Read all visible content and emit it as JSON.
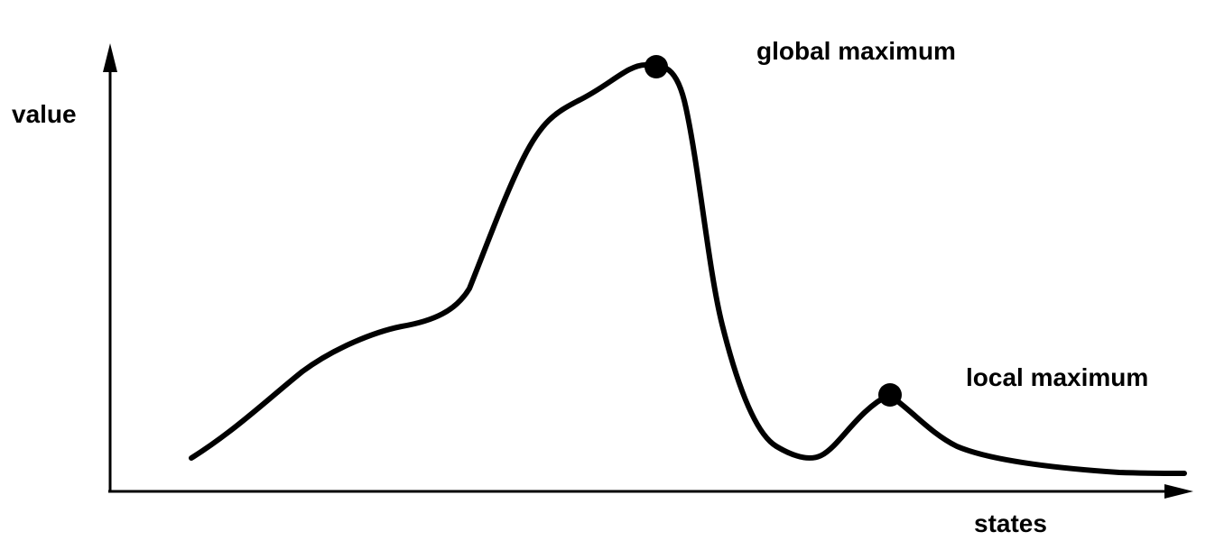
{
  "axes": {
    "y_label": "value",
    "x_label": "states"
  },
  "annotations": {
    "global_max": "global maximum",
    "local_max": "local maximum"
  },
  "colors": {
    "stroke": "#000000",
    "background": "#ffffff"
  }
}
